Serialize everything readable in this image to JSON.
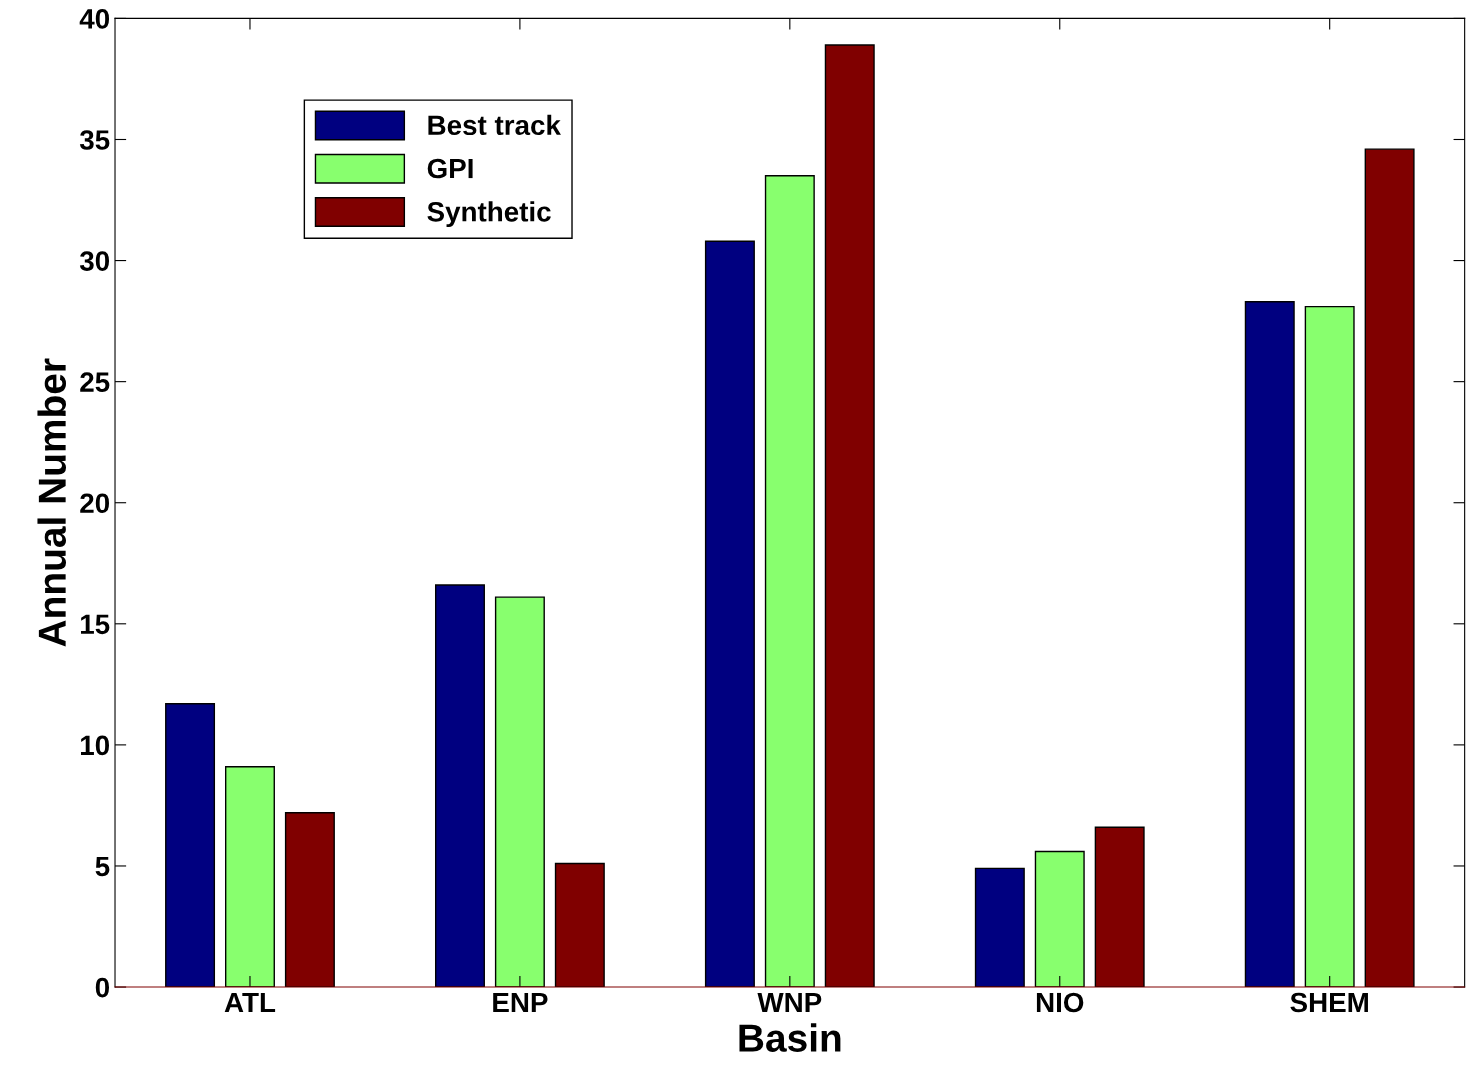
{
  "chart_data": {
    "type": "bar",
    "xlabel": "Basin",
    "ylabel": "Annual Number",
    "categories": [
      "ATL",
      "ENP",
      "WNP",
      "NIO",
      "SHEM"
    ],
    "series": [
      {
        "name": "Best track",
        "color": "#000080",
        "values": [
          11.7,
          16.6,
          30.8,
          4.9,
          28.3
        ]
      },
      {
        "name": "GPI",
        "color": "#88ff6e",
        "values": [
          9.1,
          16.1,
          33.5,
          5.6,
          28.1
        ]
      },
      {
        "name": "Synthetic",
        "color": "#800000",
        "values": [
          7.2,
          5.1,
          38.9,
          6.6,
          34.6
        ]
      }
    ],
    "ylim": [
      0,
      40
    ],
    "yticks": [
      0,
      5,
      10,
      15,
      20,
      25,
      30,
      35,
      40
    ],
    "grid": false,
    "legend": "top left"
  }
}
